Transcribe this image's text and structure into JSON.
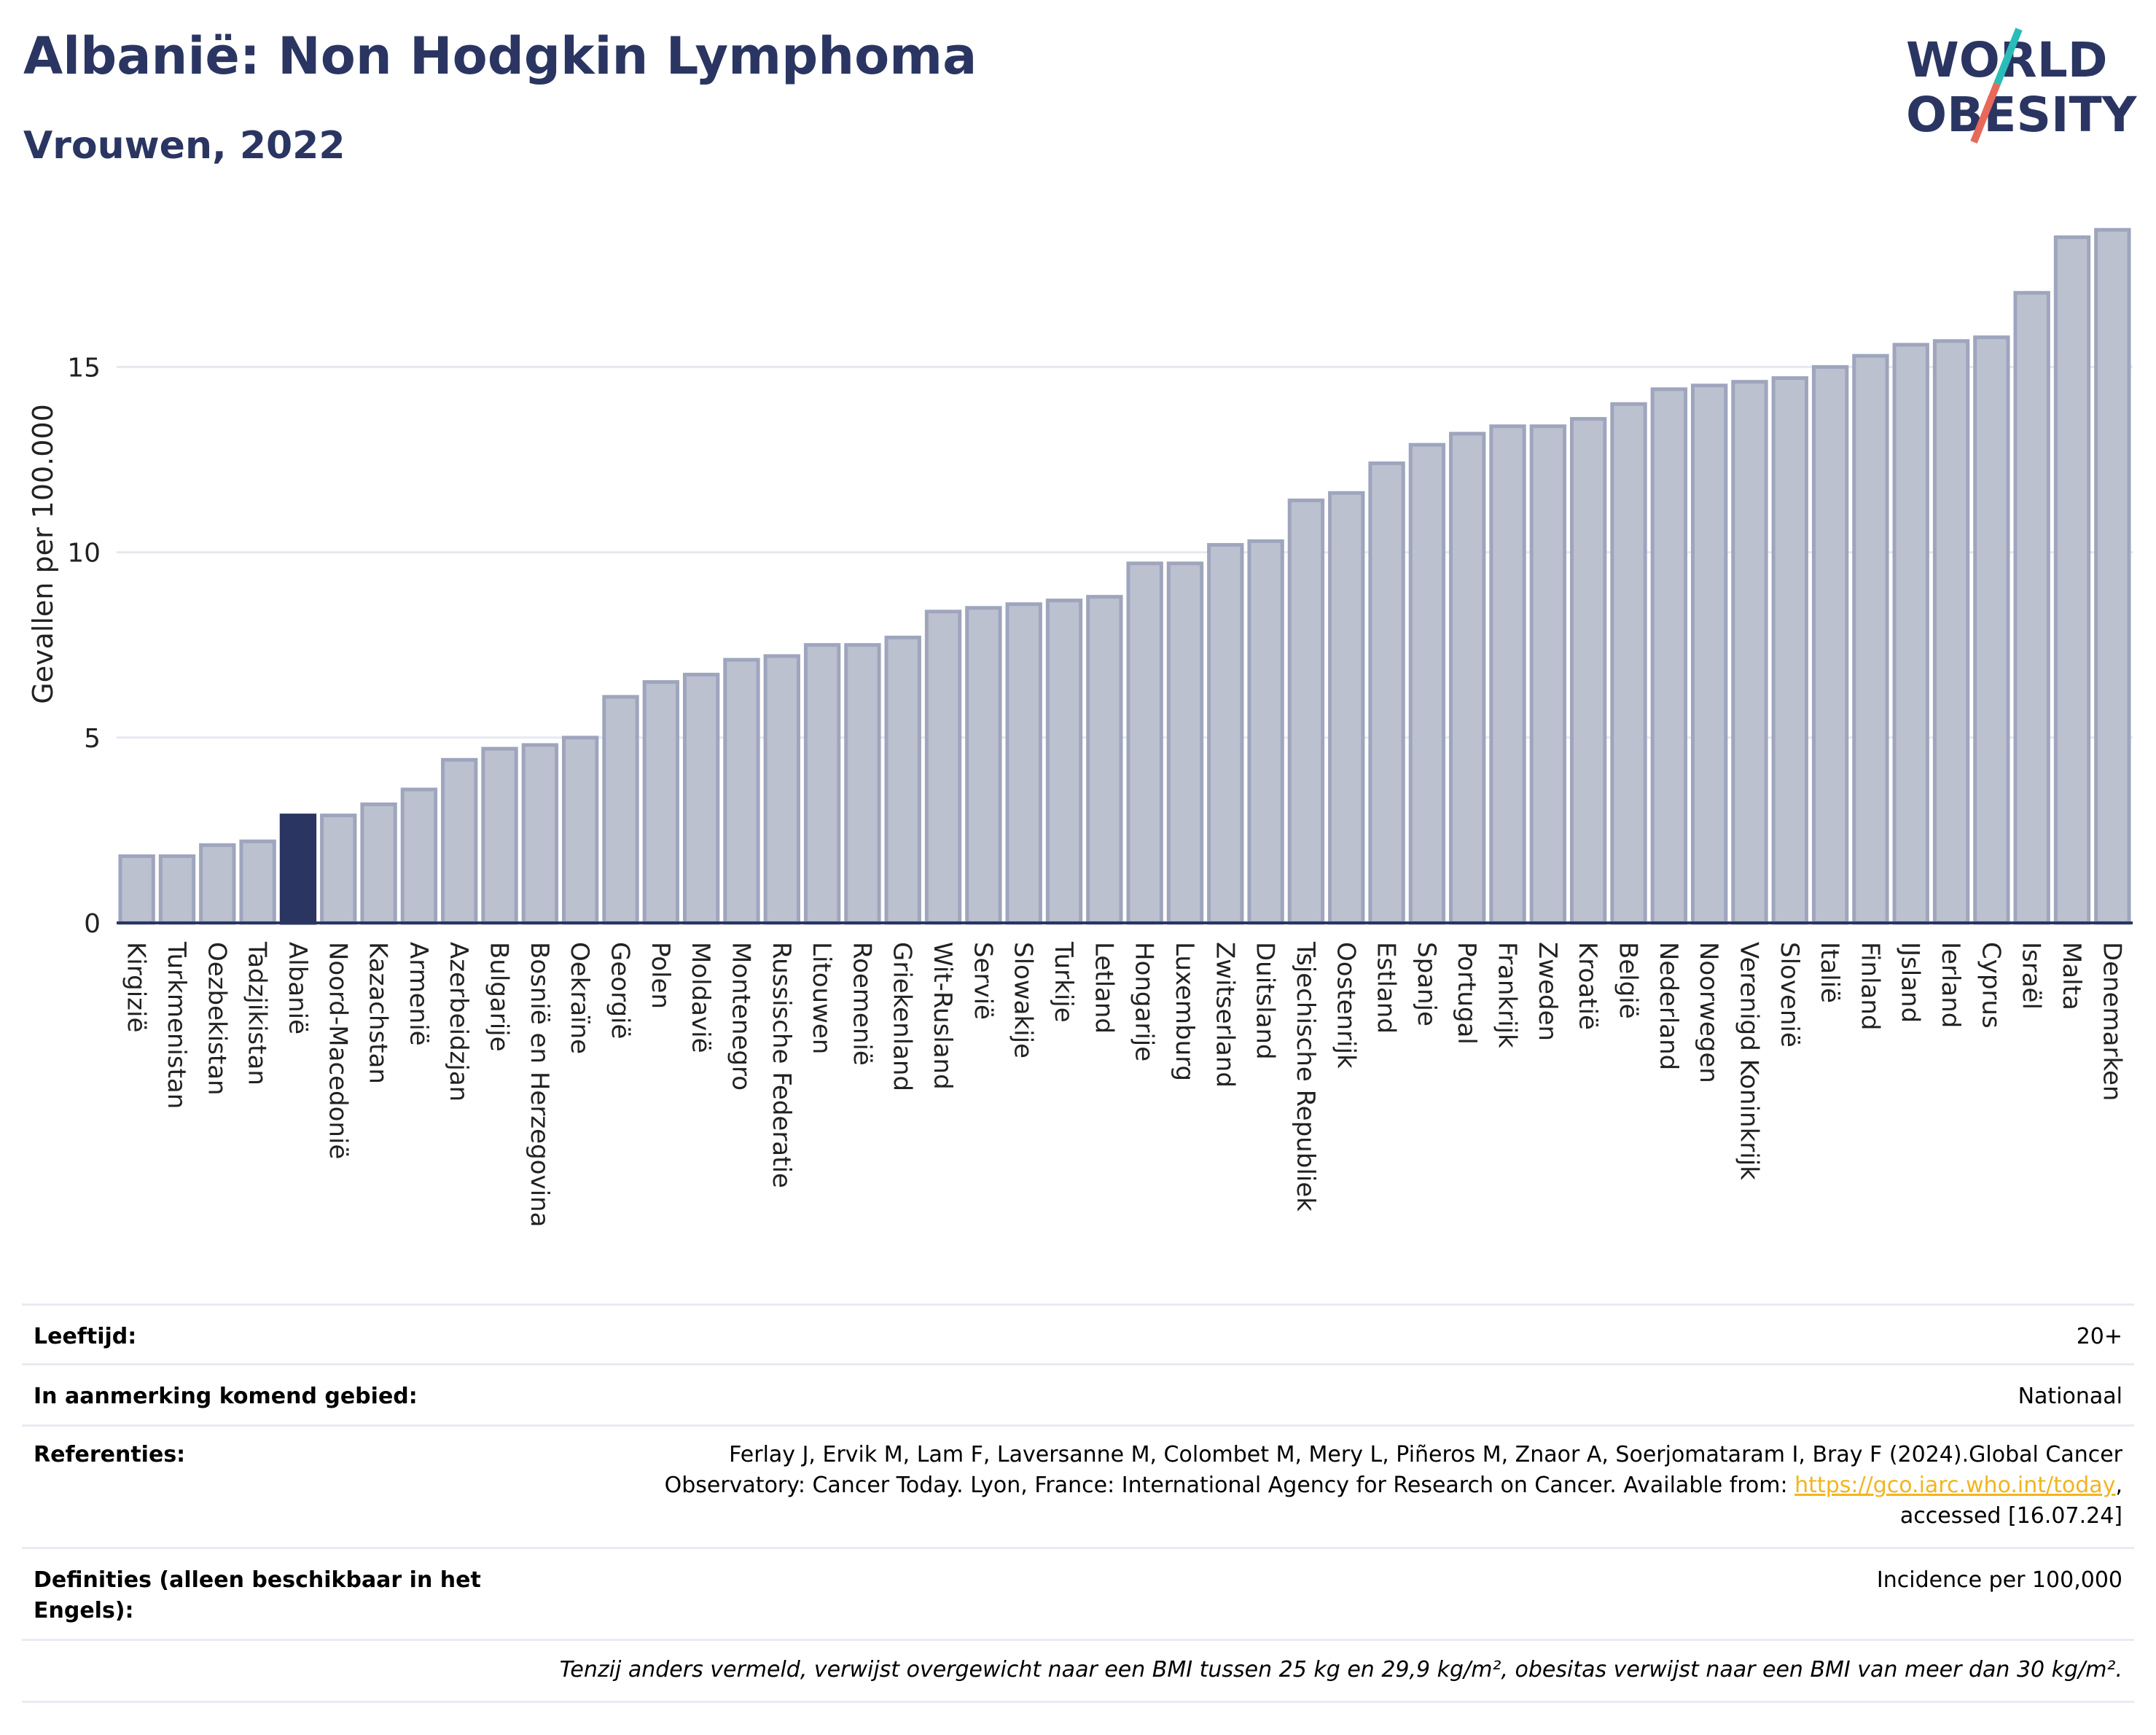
{
  "header": {
    "title": "Albanië: Non Hodgkin Lymphoma",
    "subtitle": "Vrouwen, 2022"
  },
  "logo": {
    "line1": "WORLD",
    "line2": "OBESITY",
    "colors": {
      "text": "#2a3562",
      "slash_top": "#2bbcb9",
      "slash_bottom": "#e8685a"
    }
  },
  "chart_data": {
    "type": "bar",
    "title": "",
    "xlabel": "",
    "ylabel": "Gevallen per 100.000",
    "ylim": [
      0,
      19
    ],
    "yticks": [
      0,
      5,
      10,
      15
    ],
    "grid": true,
    "highlight": "Albanië",
    "colors": {
      "bar": "#bcc1d0",
      "bar_edge": "#9ea5bd",
      "highlight": "#2a3562",
      "grid": "#e6e9f0",
      "axis": "#2a3562"
    },
    "categories": [
      "Kirgizië",
      "Turkmenistan",
      "Oezbekistan",
      "Tadzjikistan",
      "Albanië",
      "Noord-Macedonië",
      "Kazachstan",
      "Armenië",
      "Azerbeidzjan",
      "Bulgarije",
      "Bosnië en Herzegovina",
      "Oekraïne",
      "Georgië",
      "Polen",
      "Moldavië",
      "Montenegro",
      "Russische Federatie",
      "Litouwen",
      "Roemenië",
      "Griekenland",
      "Wit-Rusland",
      "Servië",
      "Slowakije",
      "Turkije",
      "Letland",
      "Hongarije",
      "Luxemburg",
      "Zwitserland",
      "Duitsland",
      "Tsjechische Republiek",
      "Oostenrijk",
      "Estland",
      "Spanje",
      "Portugal",
      "Frankrijk",
      "Zweden",
      "Kroatië",
      "België",
      "Nederland",
      "Noorwegen",
      "Verenigd Koninkrijk",
      "Slovenië",
      "Italië",
      "Finland",
      "IJsland",
      "Ierland",
      "Cyprus",
      "Israël",
      "Malta",
      "Denemarken"
    ],
    "values": [
      1.8,
      1.8,
      2.1,
      2.2,
      2.9,
      2.9,
      3.2,
      3.6,
      4.4,
      4.7,
      4.8,
      5.0,
      6.1,
      6.5,
      6.7,
      7.1,
      7.2,
      7.5,
      7.5,
      7.7,
      8.4,
      8.5,
      8.6,
      8.7,
      8.8,
      9.7,
      9.7,
      10.2,
      10.3,
      11.4,
      11.6,
      12.4,
      12.9,
      13.2,
      13.4,
      13.4,
      13.6,
      14.0,
      14.4,
      14.5,
      14.6,
      14.7,
      15.0,
      15.3,
      15.6,
      15.7,
      15.8,
      17.0,
      18.5,
      18.7
    ]
  },
  "info": {
    "age_label": "Leeftijd:",
    "age_value": "20+",
    "area_label": "In aanmerking komend gebied:",
    "area_value": "Nationaal",
    "ref_label": "Referenties:",
    "ref_line1": "Ferlay J, Ervik M, Lam F, Laversanne M, Colombet M, Mery L, Piñeros M, Znaor A, Soerjomataram I, Bray F (2024).Global Cancer",
    "ref_line2_pre": "Observatory: Cancer Today. Lyon, France: International Agency for Research on Cancer. Available from: ",
    "ref_link": "https://gco.iarc.who.int/today",
    "ref_line2_post": ",",
    "ref_line3": "accessed [16.07.24]",
    "def_label": "Definities (alleen beschikbaar in het Engels):",
    "def_value": "Incidence per 100,000",
    "footnote": "Tenzij anders vermeld, verwijst overgewicht naar een BMI tussen 25 kg en 29,9 kg/m², obesitas verwijst naar een BMI van meer dan 30 kg/m²."
  }
}
